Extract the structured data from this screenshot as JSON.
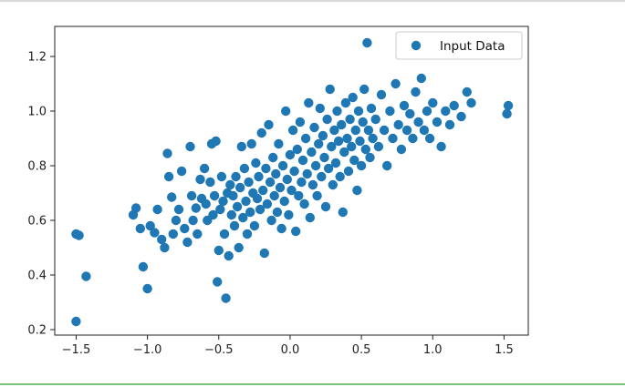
{
  "chart_data": {
    "type": "scatter",
    "title": "",
    "xlabel": "",
    "ylabel": "",
    "xlim": [
      -1.65,
      1.67
    ],
    "ylim": [
      0.18,
      1.31
    ],
    "xticks": [
      -1.5,
      -1.0,
      -0.5,
      0.0,
      0.5,
      1.0,
      1.5
    ],
    "xtick_labels": [
      "−1.5",
      "−1.0",
      "−0.5",
      "0.0",
      "0.5",
      "1.0",
      "1.5"
    ],
    "yticks": [
      0.2,
      0.4,
      0.6,
      0.8,
      1.0,
      1.2
    ],
    "ytick_labels": [
      "0.2",
      "0.4",
      "0.6",
      "0.8",
      "1.0",
      "1.2"
    ],
    "grid": false,
    "legend_position": "upper right",
    "marker_color": "#1f77b4",
    "series": [
      {
        "name": "Input Data",
        "points": [
          [
            -1.5,
            0.23
          ],
          [
            -1.5,
            0.55
          ],
          [
            -1.48,
            0.545
          ],
          [
            -1.43,
            0.395
          ],
          [
            -1.1,
            0.62
          ],
          [
            -1.08,
            0.645
          ],
          [
            -1.05,
            0.57
          ],
          [
            -1.03,
            0.43
          ],
          [
            -1.0,
            0.35
          ],
          [
            -0.98,
            0.58
          ],
          [
            -0.95,
            0.555
          ],
          [
            -0.93,
            0.64
          ],
          [
            -0.9,
            0.53
          ],
          [
            -0.88,
            0.5
          ],
          [
            -0.86,
            0.845
          ],
          [
            -0.85,
            0.76
          ],
          [
            -0.83,
            0.685
          ],
          [
            -0.82,
            0.55
          ],
          [
            -0.8,
            0.6
          ],
          [
            -0.78,
            0.64
          ],
          [
            -0.76,
            0.78
          ],
          [
            -0.74,
            0.57
          ],
          [
            -0.72,
            0.52
          ],
          [
            -0.7,
            0.87
          ],
          [
            -0.69,
            0.69
          ],
          [
            -0.68,
            0.6
          ],
          [
            -0.66,
            0.645
          ],
          [
            -0.65,
            0.55
          ],
          [
            -0.63,
            0.75
          ],
          [
            -0.62,
            0.68
          ],
          [
            -0.6,
            0.79
          ],
          [
            -0.59,
            0.66
          ],
          [
            -0.58,
            0.6
          ],
          [
            -0.56,
            0.74
          ],
          [
            -0.55,
            0.88
          ],
          [
            -0.54,
            0.62
          ],
          [
            -0.53,
            0.69
          ],
          [
            -0.52,
            0.89
          ],
          [
            -0.51,
            0.375
          ],
          [
            -0.5,
            0.49
          ],
          [
            -0.49,
            0.64
          ],
          [
            -0.48,
            0.76
          ],
          [
            -0.47,
            0.67
          ],
          [
            -0.46,
            0.55
          ],
          [
            -0.45,
            0.315
          ],
          [
            -0.44,
            0.7
          ],
          [
            -0.43,
            0.47
          ],
          [
            -0.42,
            0.73
          ],
          [
            -0.41,
            0.62
          ],
          [
            -0.4,
            0.69
          ],
          [
            -0.39,
            0.58
          ],
          [
            -0.38,
            0.76
          ],
          [
            -0.37,
            0.65
          ],
          [
            -0.36,
            0.5
          ],
          [
            -0.35,
            0.72
          ],
          [
            -0.34,
            0.87
          ],
          [
            -0.33,
            0.61
          ],
          [
            -0.32,
            0.79
          ],
          [
            -0.31,
            0.67
          ],
          [
            -0.3,
            0.55
          ],
          [
            -0.29,
            0.74
          ],
          [
            -0.28,
            0.63
          ],
          [
            -0.27,
            0.88
          ],
          [
            -0.26,
            0.7
          ],
          [
            -0.25,
            0.58
          ],
          [
            -0.24,
            0.81
          ],
          [
            -0.23,
            0.68
          ],
          [
            -0.22,
            0.76
          ],
          [
            -0.21,
            0.64
          ],
          [
            -0.2,
            0.92
          ],
          [
            -0.19,
            0.71
          ],
          [
            -0.18,
            0.48
          ],
          [
            -0.17,
            0.79
          ],
          [
            -0.16,
            0.66
          ],
          [
            -0.15,
            0.95
          ],
          [
            -0.14,
            0.74
          ],
          [
            -0.13,
            0.6
          ],
          [
            -0.12,
            0.83
          ],
          [
            -0.11,
            0.69
          ],
          [
            -0.1,
            0.77
          ],
          [
            -0.09,
            0.63
          ],
          [
            -0.08,
            0.88
          ],
          [
            -0.07,
            0.72
          ],
          [
            -0.06,
            0.57
          ],
          [
            -0.05,
            0.8
          ],
          [
            -0.04,
            0.67
          ],
          [
            -0.03,
            1.0
          ],
          [
            -0.02,
            0.75
          ],
          [
            -0.01,
            0.62
          ],
          [
            0.0,
            0.84
          ],
          [
            0.01,
            0.71
          ],
          [
            0.02,
            0.93
          ],
          [
            0.03,
            0.78
          ],
          [
            0.04,
            0.56
          ],
          [
            0.05,
            0.86
          ],
          [
            0.06,
            0.69
          ],
          [
            0.07,
            0.96
          ],
          [
            0.08,
            0.74
          ],
          [
            0.09,
            0.82
          ],
          [
            0.1,
            0.66
          ],
          [
            0.11,
            0.9
          ],
          [
            0.12,
            0.77
          ],
          [
            0.13,
            1.03
          ],
          [
            0.14,
            0.61
          ],
          [
            0.15,
            0.85
          ],
          [
            0.16,
            0.73
          ],
          [
            0.17,
            0.94
          ],
          [
            0.18,
            0.8
          ],
          [
            0.19,
            0.69
          ],
          [
            0.2,
            0.88
          ],
          [
            0.21,
            1.01
          ],
          [
            0.22,
            0.76
          ],
          [
            0.23,
            0.91
          ],
          [
            0.24,
            0.83
          ],
          [
            0.25,
            0.65
          ],
          [
            0.26,
            0.97
          ],
          [
            0.27,
            0.79
          ],
          [
            0.28,
            1.08
          ],
          [
            0.29,
            0.87
          ],
          [
            0.3,
            0.73
          ],
          [
            0.31,
            0.93
          ],
          [
            0.32,
            0.81
          ],
          [
            0.33,
            1.0
          ],
          [
            0.34,
            0.89
          ],
          [
            0.35,
            0.76
          ],
          [
            0.36,
            0.95
          ],
          [
            0.37,
            0.63
          ],
          [
            0.38,
            0.85
          ],
          [
            0.39,
            1.03
          ],
          [
            0.4,
            0.9
          ],
          [
            0.41,
            0.78
          ],
          [
            0.42,
            0.97
          ],
          [
            0.43,
            0.87
          ],
          [
            0.44,
            1.05
          ],
          [
            0.45,
            0.82
          ],
          [
            0.46,
            0.93
          ],
          [
            0.47,
            0.71
          ],
          [
            0.48,
            1.0
          ],
          [
            0.49,
            0.89
          ],
          [
            0.5,
            0.8
          ],
          [
            0.51,
            0.96
          ],
          [
            0.52,
            1.08
          ],
          [
            0.53,
            0.86
          ],
          [
            0.54,
            1.25
          ],
          [
            0.55,
            0.93
          ],
          [
            0.56,
            0.83
          ],
          [
            0.57,
            1.01
          ],
          [
            0.58,
            0.9
          ],
          [
            0.6,
            0.97
          ],
          [
            0.62,
            0.87
          ],
          [
            0.64,
            1.06
          ],
          [
            0.66,
            0.93
          ],
          [
            0.68,
            0.8
          ],
          [
            0.7,
            1.0
          ],
          [
            0.72,
            0.9
          ],
          [
            0.74,
            1.1
          ],
          [
            0.76,
            0.95
          ],
          [
            0.78,
            0.86
          ],
          [
            0.8,
            1.02
          ],
          [
            0.82,
            0.93
          ],
          [
            0.84,
            0.99
          ],
          [
            0.86,
            0.9
          ],
          [
            0.88,
            1.07
          ],
          [
            0.9,
            0.96
          ],
          [
            0.92,
            1.12
          ],
          [
            0.94,
            0.93
          ],
          [
            0.96,
            1.0
          ],
          [
            0.98,
            0.9
          ],
          [
            1.0,
            1.03
          ],
          [
            1.03,
            0.96
          ],
          [
            1.06,
            0.87
          ],
          [
            1.09,
            1.0
          ],
          [
            1.12,
            0.95
          ],
          [
            1.15,
            1.02
          ],
          [
            1.2,
            0.98
          ],
          [
            1.24,
            1.07
          ],
          [
            1.27,
            1.03
          ],
          [
            1.52,
            0.99
          ],
          [
            1.53,
            1.02
          ]
        ]
      }
    ]
  }
}
